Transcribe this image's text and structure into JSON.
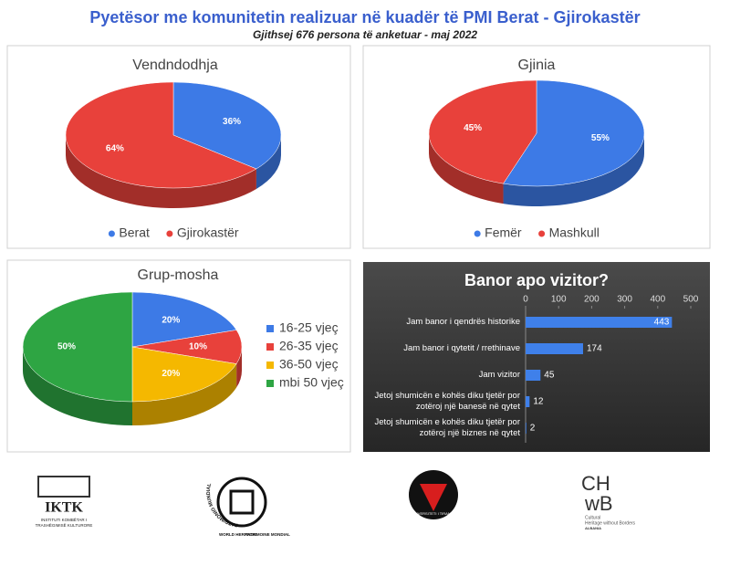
{
  "header": {
    "title": "Pyetësor me komunitetin realizuar në kuadër të PMI Berat - Gjirokastër",
    "subtitle": "Gjithsej 676 persona të  anketuar - maj 2022"
  },
  "chart_data": [
    {
      "type": "pie",
      "title": "Vendndodhja",
      "categories": [
        "Berat",
        "Gjirokastër"
      ],
      "values": [
        36,
        64
      ],
      "value_labels": [
        "36%",
        "64%"
      ],
      "colors": [
        "#3d7ae6",
        "#e8413b"
      ],
      "legend": "bottom"
    },
    {
      "type": "pie",
      "title": "Gjinia",
      "categories": [
        "Femër",
        "Mashkull"
      ],
      "values": [
        55,
        45
      ],
      "value_labels": [
        "55%",
        "45%"
      ],
      "colors": [
        "#3d7ae6",
        "#e8413b"
      ],
      "legend": "bottom"
    },
    {
      "type": "pie",
      "title": "Grup-mosha",
      "categories": [
        "16-25 vjeç",
        "26-35 vjeç",
        "36-50 vjeç",
        "mbi 50 vjeç"
      ],
      "values": [
        20,
        10,
        20,
        50
      ],
      "value_labels": [
        "20%",
        "10%",
        "20%",
        "50%"
      ],
      "colors": [
        "#3d7ae6",
        "#e8413b",
        "#f5b800",
        "#2ea543"
      ],
      "legend": "right"
    },
    {
      "type": "bar",
      "orientation": "horizontal",
      "title": "Banor apo vizitor?",
      "categories": [
        "Jam banor i qendrës historike",
        "Jam banor i qytetit / rrethinave",
        "Jam vizitor",
        "Jetoj shumicën e kohës diku tjetër por zotëroj një banesë në qytet",
        "Jetoj shumicën e kohës diku tjetër por zotëroj një biznes në qytet"
      ],
      "values": [
        443,
        174,
        45,
        12,
        2
      ],
      "color": "#3f80ea",
      "xlim": [
        0,
        500
      ],
      "xticks": [
        0,
        100,
        200,
        300,
        400,
        500
      ]
    }
  ],
  "logos": {
    "iktk": {
      "name": "IKTK",
      "caption": [
        "INSTITUTI KOMBËTAR I",
        "TRASHËGIMISË KULTURORE"
      ]
    },
    "whc": [
      "PATRIMONIO MUNDIAL",
      "WORLD HERITAGE",
      "PATRIMOINE MONDIAL"
    ],
    "ut": "UNIVERSITETI I TIRANËS",
    "chwb": {
      "name": [
        "CH",
        "wB"
      ],
      "caption": [
        "Cultural",
        "Heritage without Borders"
      ],
      "country": "ALBANIA"
    }
  }
}
